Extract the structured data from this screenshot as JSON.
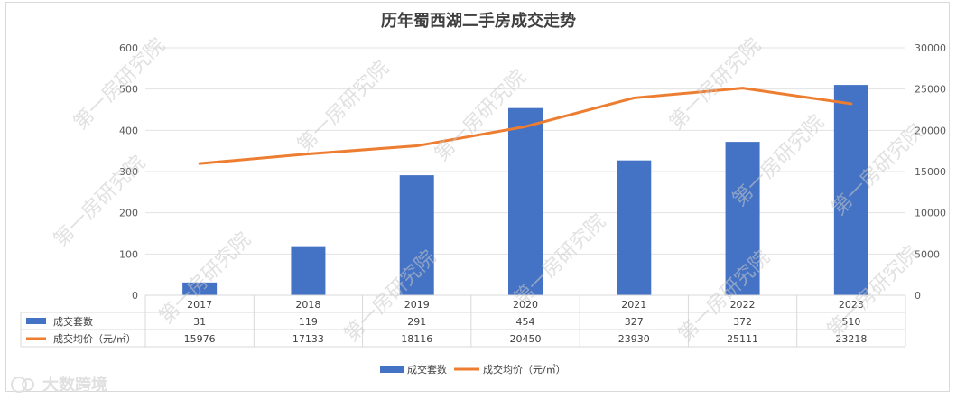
{
  "chart_data": {
    "type": "bar",
    "title": "历年蜀西湖二手房成交走势",
    "categories": [
      "2017",
      "2018",
      "2019",
      "2020",
      "2021",
      "2022",
      "2023"
    ],
    "series": [
      {
        "name": "成交套数",
        "type": "bar",
        "axis": "left",
        "color": "#4472c4",
        "values": [
          31,
          119,
          291,
          454,
          327,
          372,
          510
        ]
      },
      {
        "name": "成交均价（元/㎡）",
        "type": "line",
        "axis": "right",
        "color": "#ed7d31",
        "values": [
          15976,
          17133,
          18116,
          20450,
          23930,
          25111,
          23218
        ]
      }
    ],
    "y_left": {
      "min": 0,
      "max": 600,
      "ticks": [
        0,
        100,
        200,
        300,
        400,
        500,
        600
      ]
    },
    "y_right": {
      "min": 0,
      "max": 30000,
      "ticks": [
        0,
        5000,
        10000,
        15000,
        20000,
        25000,
        30000
      ]
    },
    "grid": true,
    "data_table": true,
    "legend_position": "bottom"
  },
  "watermark": "第一房研究院",
  "brand": "大数跨境"
}
